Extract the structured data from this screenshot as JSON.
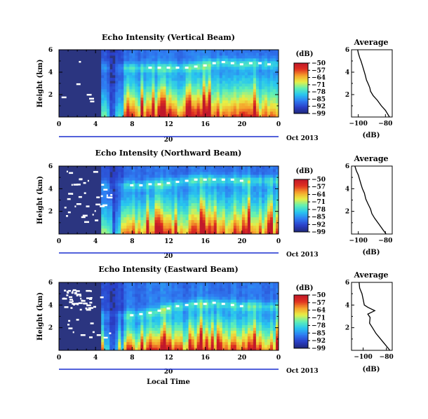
{
  "panels": [
    {
      "title": "Echo Intensity (Vertical Beam)",
      "unit_label": "(dB)",
      "date_label": "Oct 2013",
      "date_day": "20",
      "avg_title": "Average",
      "avg_xlabel": "(dB)"
    },
    {
      "title": "Echo Intensity (Northward Beam)",
      "unit_label": "(dB)",
      "date_label": "Oct 2013",
      "date_day": "20",
      "avg_title": "Average",
      "avg_xlabel": "(dB)"
    },
    {
      "title": "Echo Intensity (Eastward Beam)",
      "unit_label": "(dB)",
      "date_label": "Oct 2013",
      "date_day": "20",
      "avg_title": "Average",
      "avg_xlabel": "(dB)"
    }
  ],
  "xaxis_label": "Local Time",
  "colors": {
    "colormap": [
      "#20287a",
      "#2a3fc8",
      "#2f7cf2",
      "#28c6ef",
      "#60f0b4",
      "#e8f045",
      "#f6a22c",
      "#e03020",
      "#c0182a"
    ],
    "sat_colormap": [
      "#1e2a7a",
      "#1a3ad0",
      "#1a7cf5",
      "#00c8f5",
      "#55f0a0",
      "#eaf030",
      "#f59a1a",
      "#e02010"
    ],
    "missing": "#ffffff",
    "axis": "#000000",
    "date_bar": "#1a2fcf"
  },
  "chart_data": [
    {
      "type": "heatmap",
      "title": "Echo Intensity (Vertical Beam)",
      "ylabel": "Height (km)",
      "xlabel": "",
      "x_ticks": [
        "0",
        "4",
        "8",
        "12",
        "16",
        "20",
        "0"
      ],
      "x_range": [
        0,
        24
      ],
      "y_ticks": [
        "2",
        "4",
        "6"
      ],
      "y_range": [
        0,
        6
      ],
      "colorbar": {
        "label": "(dB)",
        "ticks": [
          -50,
          -57,
          -64,
          -71,
          -78,
          -85,
          -92,
          -99
        ],
        "range": [
          -99,
          -50
        ]
      },
      "bright_layer_height_km": [
        4.4,
        4.4,
        4.4,
        4.4,
        4.4,
        4.5,
        4.6,
        4.8,
        4.9,
        4.8,
        4.7,
        4.8,
        4.8,
        4.7
      ],
      "bright_layer_time_h": [
        10,
        11,
        12,
        13,
        14,
        15,
        16,
        17,
        18,
        19,
        20,
        21,
        22,
        23
      ],
      "average_profile": {
        "title": "Average",
        "xlabel": "(dB)",
        "x_ticks": [
          "-100",
          "-80"
        ],
        "x_range": [
          -105,
          -75
        ],
        "y_ticks": [
          "2",
          "4",
          "6"
        ],
        "y_range": [
          0,
          6
        ],
        "x": [
          -100.5,
          -100,
          -99,
          -98,
          -97,
          -96,
          -95,
          -94,
          -92.5,
          -91.5,
          -91,
          -89,
          -86,
          -83,
          -80,
          -77
        ],
        "y": [
          6.0,
          5.7,
          5.3,
          5.0,
          4.6,
          4.2,
          3.8,
          3.3,
          2.9,
          2.6,
          2.3,
          1.9,
          1.5,
          1.0,
          0.6,
          0.0
        ]
      }
    },
    {
      "type": "heatmap",
      "title": "Echo Intensity (Northward Beam)",
      "ylabel": "Height (km)",
      "xlabel": "",
      "x_ticks": [
        "0",
        "4",
        "8",
        "12",
        "16",
        "20",
        "0"
      ],
      "x_range": [
        0,
        24
      ],
      "y_ticks": [
        "2",
        "4",
        "6"
      ],
      "y_range": [
        0,
        6
      ],
      "colorbar": {
        "label": "(dB)",
        "ticks": [
          -50,
          -57,
          -64,
          -71,
          -78,
          -85,
          -92,
          -99
        ],
        "range": [
          -99,
          -50
        ]
      },
      "bright_layer_height_km": [
        4.3,
        4.3,
        4.4,
        4.4,
        4.5,
        4.6,
        4.7,
        4.8,
        4.8,
        4.8,
        4.8,
        4.8,
        4.7
      ],
      "bright_layer_time_h": [
        8,
        9,
        10,
        11,
        12,
        13,
        14,
        15,
        16,
        17,
        18,
        19,
        20
      ],
      "average_profile": {
        "title": "Average",
        "xlabel": "(dB)",
        "x_ticks": [
          "-100",
          "-80"
        ],
        "x_range": [
          -105,
          -75
        ],
        "y_ticks": [
          "2",
          "4",
          "6"
        ],
        "y_range": [
          0,
          6
        ],
        "x": [
          -102.5,
          -101.5,
          -100,
          -99,
          -98,
          -97,
          -95.5,
          -94.5,
          -93,
          -91,
          -90,
          -88,
          -85,
          -82,
          -79.5
        ],
        "y": [
          6.0,
          5.6,
          5.2,
          4.8,
          4.4,
          4.0,
          3.6,
          3.1,
          2.7,
          2.2,
          1.8,
          1.4,
          0.9,
          0.4,
          0.0
        ]
      }
    },
    {
      "type": "heatmap",
      "title": "Echo Intensity (Eastward Beam)",
      "ylabel": "Height (km)",
      "xlabel": "Local Time",
      "x_ticks": [
        "0",
        "4",
        "8",
        "12",
        "16",
        "20",
        "0"
      ],
      "x_range": [
        0,
        24
      ],
      "y_ticks": [
        "2",
        "4",
        "6"
      ],
      "y_range": [
        0,
        6
      ],
      "colorbar": {
        "label": "(dB)",
        "ticks": [
          -50,
          -57,
          -64,
          -71,
          -78,
          -85,
          -92,
          -99
        ],
        "range": [
          -99,
          -50
        ]
      },
      "bright_layer_height_km": [
        3.1,
        3.2,
        3.3,
        3.5,
        3.7,
        3.9,
        4.0,
        4.1,
        4.1,
        4.2,
        4.1,
        4.0,
        3.9
      ],
      "bright_layer_time_h": [
        8,
        9,
        10,
        11,
        12,
        13,
        14,
        15,
        16,
        17,
        18,
        19,
        20
      ],
      "average_profile": {
        "title": "Average",
        "xlabel": "(dB)",
        "x_ticks": [
          "-100",
          "-80"
        ],
        "x_range": [
          -110,
          -75
        ],
        "y_ticks": [
          "2",
          "4",
          "6"
        ],
        "y_range": [
          0,
          6
        ],
        "x": [
          -103.5,
          -103,
          -101,
          -100,
          -99,
          -96,
          -90,
          -96,
          -94,
          -94.5,
          -92,
          -89,
          -85,
          -81,
          -77
        ],
        "y": [
          6.0,
          5.5,
          5.0,
          4.5,
          4.0,
          3.8,
          3.5,
          3.2,
          2.9,
          2.4,
          2.0,
          1.5,
          1.0,
          0.5,
          0.0
        ]
      }
    }
  ]
}
